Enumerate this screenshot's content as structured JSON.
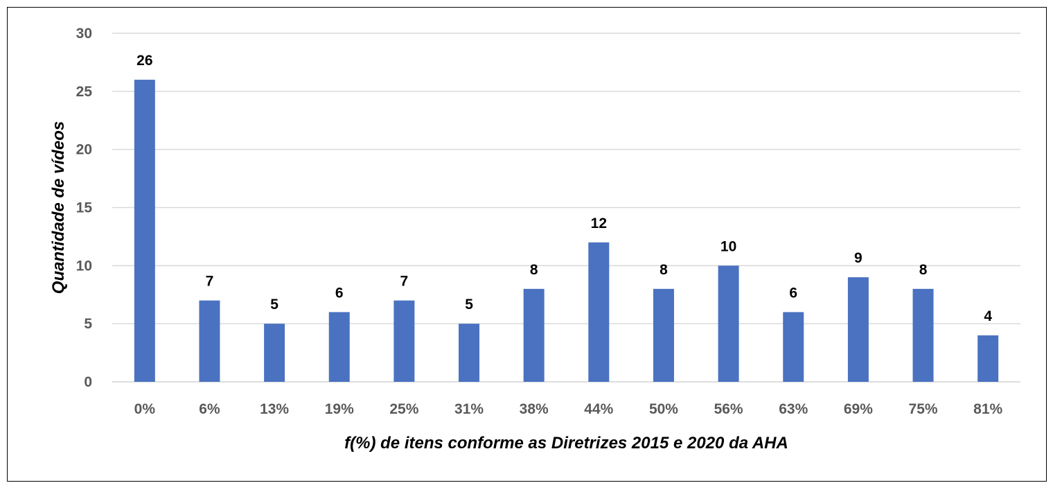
{
  "chart_data": {
    "type": "bar",
    "categories": [
      "0%",
      "6%",
      "13%",
      "19%",
      "25%",
      "31%",
      "38%",
      "44%",
      "50%",
      "56%",
      "63%",
      "69%",
      "75%",
      "81%"
    ],
    "values": [
      26,
      7,
      5,
      6,
      7,
      5,
      8,
      12,
      8,
      10,
      6,
      9,
      8,
      4
    ],
    "xlabel": "f(%) de itens conforme as Diretrizes 2015 e 2020 da AHA",
    "ylabel": "Quantidade de vídeos",
    "ylim": [
      0,
      30
    ],
    "yticks": [
      0,
      5,
      10,
      15,
      20,
      25,
      30
    ],
    "grid": true,
    "legend": "none",
    "bar_color": "#4a72c0",
    "grid_color": "#d9d9d9"
  }
}
